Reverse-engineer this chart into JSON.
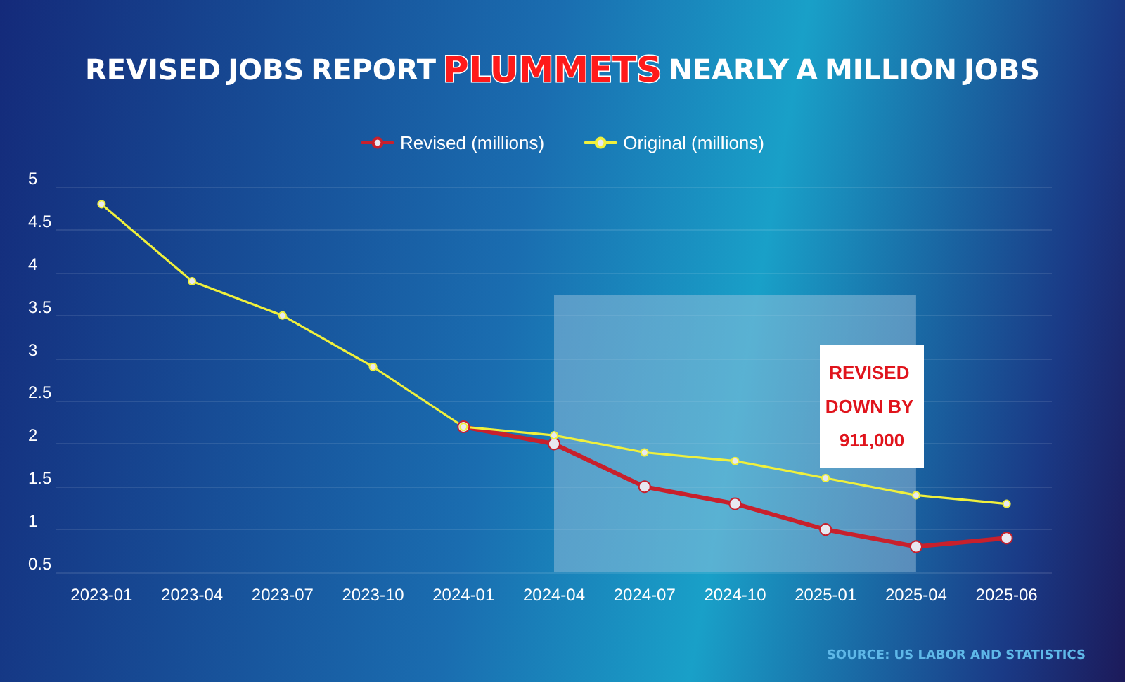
{
  "chart_data": {
    "type": "line",
    "title": "REVISED JOBS REPORT PLUMMETS NEARLY A MILLION JOBS",
    "categories": [
      "2023-01",
      "2023-04",
      "2023-07",
      "2023-10",
      "2024-01",
      "2024-04",
      "2024-07",
      "2024-10",
      "2025-01",
      "2025-04",
      "2025-06"
    ],
    "series": [
      {
        "name": "Revised (millions)",
        "color": "#c8202c",
        "values": [
          null,
          null,
          null,
          null,
          2.2,
          2.0,
          1.5,
          1.3,
          1.0,
          0.8,
          0.9
        ]
      },
      {
        "name": "Original (millions)",
        "color": "#f0f03c",
        "values": [
          4.8,
          3.9,
          3.5,
          2.9,
          2.2,
          2.1,
          1.9,
          1.8,
          1.6,
          1.4,
          1.3
        ]
      }
    ],
    "ylim": [
      0.5,
      5
    ],
    "yticks": [
      0.5,
      1,
      1.5,
      2,
      2.5,
      3,
      3.5,
      4,
      4.5,
      5
    ],
    "bands": [
      {
        "axis": "x",
        "from": "2024-04",
        "to": "2025-04",
        "color": "#a8c8e0"
      }
    ],
    "annotations": [
      "REVISED DOWN BY 911,000",
      "SOURCE: US LABOR AND STATISTICS"
    ],
    "grid": "y",
    "legend": "top",
    "marker": "circle",
    "line_style": "solid"
  }
}
